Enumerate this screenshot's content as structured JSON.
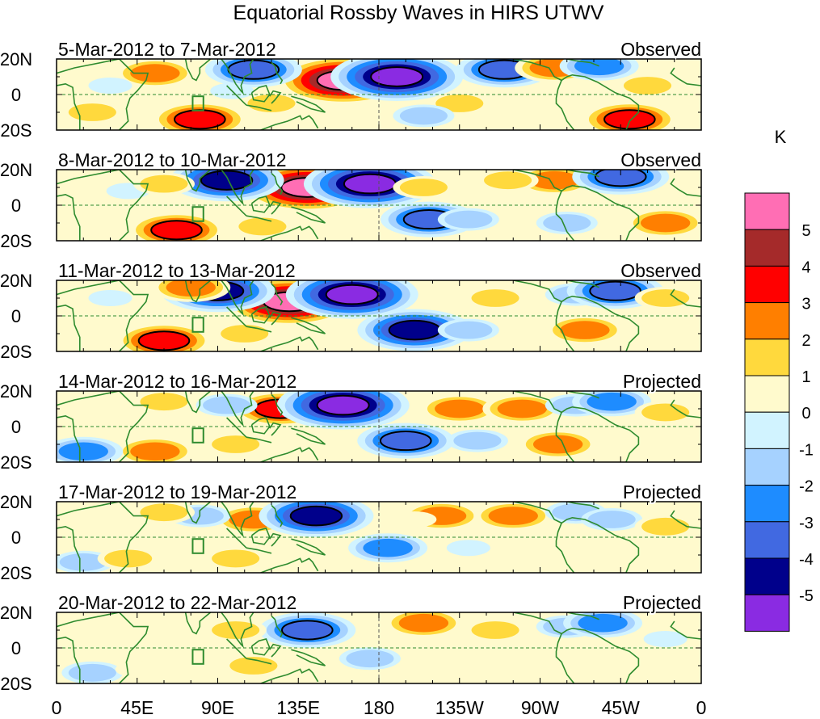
{
  "chart_data": {
    "type": "heatmap",
    "title": "Equatorial Rossby Waves in HIRS UTWV",
    "xlabels": [
      "0",
      "45E",
      "90E",
      "135E",
      "180",
      "135W",
      "90W",
      "45W",
      "0"
    ],
    "lon_range": [
      0,
      360
    ],
    "lat_range": [
      -20,
      20
    ],
    "ylabels": [
      "20N",
      "0",
      "20S"
    ],
    "colorbar": {
      "unit": "K",
      "levels": [
        "5",
        "4",
        "3",
        "2",
        "1",
        "0",
        "-1",
        "-2",
        "-3",
        "-4",
        "-5"
      ],
      "colors": [
        "#ff6eb4",
        "#a52a2a",
        "#ff0000",
        "#ff7f00",
        "#ffd93d",
        "#fffacd",
        "#d1f3ff",
        "#a6d2ff",
        "#1e8cff",
        "#4169e1",
        "#00008b",
        "#8a2be2"
      ]
    },
    "panels": [
      {
        "dates": "5-Mar-2012 to 7-Mar-2012",
        "status": "Observed",
        "blobs": [
          {
            "lon": 160,
            "lat": 8,
            "value": 6
          },
          {
            "lon": 190,
            "lat": 10,
            "value": -6
          },
          {
            "lon": 110,
            "lat": 14,
            "value": -4
          },
          {
            "lon": 80,
            "lat": -14,
            "value": 4
          },
          {
            "lon": 320,
            "lat": -14,
            "value": 4
          },
          {
            "lon": 55,
            "lat": 12,
            "value": 3
          },
          {
            "lon": 250,
            "lat": 14,
            "value": -4
          },
          {
            "lon": 278,
            "lat": 15,
            "value": 3
          },
          {
            "lon": 225,
            "lat": -5,
            "value": 2
          },
          {
            "lon": 303,
            "lat": 16,
            "value": -3
          },
          {
            "lon": 20,
            "lat": -10,
            "value": 2
          },
          {
            "lon": 330,
            "lat": 5,
            "value": 2
          },
          {
            "lon": 30,
            "lat": 5,
            "value": -1
          },
          {
            "lon": 205,
            "lat": -12,
            "value": -2
          },
          {
            "lon": 120,
            "lat": -5,
            "value": 2
          },
          {
            "lon": 98,
            "lat": 2,
            "value": -1
          }
        ]
      },
      {
        "dates": "8-Mar-2012 to 10-Mar-2012",
        "status": "Observed",
        "blobs": [
          {
            "lon": 140,
            "lat": 10,
            "value": 6
          },
          {
            "lon": 175,
            "lat": 12,
            "value": -6
          },
          {
            "lon": 95,
            "lat": 14,
            "value": -5
          },
          {
            "lon": 67,
            "lat": -14,
            "value": 4
          },
          {
            "lon": 208,
            "lat": -8,
            "value": -4
          },
          {
            "lon": 278,
            "lat": 14,
            "value": 3
          },
          {
            "lon": 252,
            "lat": 14,
            "value": 2
          },
          {
            "lon": 315,
            "lat": 16,
            "value": -4
          },
          {
            "lon": 340,
            "lat": -10,
            "value": 3
          },
          {
            "lon": 205,
            "lat": 10,
            "value": 2
          },
          {
            "lon": 230,
            "lat": -8,
            "value": -2
          },
          {
            "lon": 285,
            "lat": -10,
            "value": -2
          },
          {
            "lon": 40,
            "lat": 8,
            "value": -1
          },
          {
            "lon": 115,
            "lat": -12,
            "value": 2
          },
          {
            "lon": 60,
            "lat": 12,
            "value": 2
          }
        ]
      },
      {
        "dates": "11-Mar-2012 to 13-Mar-2012",
        "status": "Observed",
        "blobs": [
          {
            "lon": 130,
            "lat": 8,
            "value": 6
          },
          {
            "lon": 165,
            "lat": 12,
            "value": -6
          },
          {
            "lon": 90,
            "lat": 14,
            "value": -5
          },
          {
            "lon": 60,
            "lat": -14,
            "value": 4
          },
          {
            "lon": 200,
            "lat": -8,
            "value": -5
          },
          {
            "lon": 245,
            "lat": 10,
            "value": 2
          },
          {
            "lon": 290,
            "lat": 12,
            "value": -2
          },
          {
            "lon": 312,
            "lat": 14,
            "value": -4
          },
          {
            "lon": 295,
            "lat": -8,
            "value": 3
          },
          {
            "lon": 340,
            "lat": 10,
            "value": 2
          },
          {
            "lon": 75,
            "lat": 16,
            "value": 3
          },
          {
            "lon": 105,
            "lat": -10,
            "value": 2
          },
          {
            "lon": 30,
            "lat": 10,
            "value": -1
          },
          {
            "lon": 230,
            "lat": -8,
            "value": -2
          },
          {
            "lon": 260,
            "lat": -12,
            "value": 1
          }
        ]
      },
      {
        "dates": "14-Mar-2012 to 16-Mar-2012",
        "status": "Projected",
        "blobs": [
          {
            "lon": 125,
            "lat": 10,
            "value": 4
          },
          {
            "lon": 160,
            "lat": 12,
            "value": -6
          },
          {
            "lon": 195,
            "lat": -8,
            "value": -4
          },
          {
            "lon": 225,
            "lat": 10,
            "value": 3
          },
          {
            "lon": 260,
            "lat": 10,
            "value": 3
          },
          {
            "lon": 290,
            "lat": 12,
            "value": -2
          },
          {
            "lon": 310,
            "lat": 14,
            "value": -3
          },
          {
            "lon": 280,
            "lat": -10,
            "value": 3
          },
          {
            "lon": 60,
            "lat": 14,
            "value": 2
          },
          {
            "lon": 95,
            "lat": 12,
            "value": -2
          },
          {
            "lon": 55,
            "lat": -14,
            "value": 3
          },
          {
            "lon": 100,
            "lat": -10,
            "value": 2
          },
          {
            "lon": 15,
            "lat": -14,
            "value": -3
          },
          {
            "lon": 235,
            "lat": -8,
            "value": -2
          },
          {
            "lon": 340,
            "lat": 8,
            "value": 2
          },
          {
            "lon": 30,
            "lat": 10,
            "value": 1
          }
        ]
      },
      {
        "dates": "17-Mar-2012 to 19-Mar-2012",
        "status": "Projected",
        "blobs": [
          {
            "lon": 110,
            "lat": 10,
            "value": 3
          },
          {
            "lon": 145,
            "lat": 12,
            "value": -5
          },
          {
            "lon": 185,
            "lat": -6,
            "value": -3
          },
          {
            "lon": 215,
            "lat": 12,
            "value": 3
          },
          {
            "lon": 255,
            "lat": 12,
            "value": 3
          },
          {
            "lon": 290,
            "lat": 14,
            "value": -2
          },
          {
            "lon": 310,
            "lat": 10,
            "value": -2
          },
          {
            "lon": 80,
            "lat": 12,
            "value": -2
          },
          {
            "lon": 60,
            "lat": 14,
            "value": 2
          },
          {
            "lon": 100,
            "lat": -12,
            "value": 2
          },
          {
            "lon": 15,
            "lat": -14,
            "value": -2
          },
          {
            "lon": 40,
            "lat": -12,
            "value": 2
          },
          {
            "lon": 230,
            "lat": -6,
            "value": -1
          },
          {
            "lon": 340,
            "lat": 6,
            "value": 2
          },
          {
            "lon": 200,
            "lat": 10,
            "value": 1
          }
        ]
      },
      {
        "dates": "20-Mar-2012 to 22-Mar-2012",
        "status": "Projected",
        "blobs": [
          {
            "lon": 140,
            "lat": 10,
            "value": -4
          },
          {
            "lon": 175,
            "lat": -6,
            "value": -2
          },
          {
            "lon": 205,
            "lat": 14,
            "value": 3
          },
          {
            "lon": 245,
            "lat": 10,
            "value": 2
          },
          {
            "lon": 285,
            "lat": 12,
            "value": -2
          },
          {
            "lon": 305,
            "lat": 14,
            "value": -3
          },
          {
            "lon": 100,
            "lat": 10,
            "value": 2
          },
          {
            "lon": 110,
            "lat": -10,
            "value": 2
          },
          {
            "lon": 20,
            "lat": -14,
            "value": -2
          },
          {
            "lon": 45,
            "lat": -12,
            "value": 1
          },
          {
            "lon": 320,
            "lat": -12,
            "value": 1
          },
          {
            "lon": 340,
            "lat": 5,
            "value": -1
          },
          {
            "lon": 230,
            "lat": -8,
            "value": 1
          }
        ]
      }
    ]
  }
}
